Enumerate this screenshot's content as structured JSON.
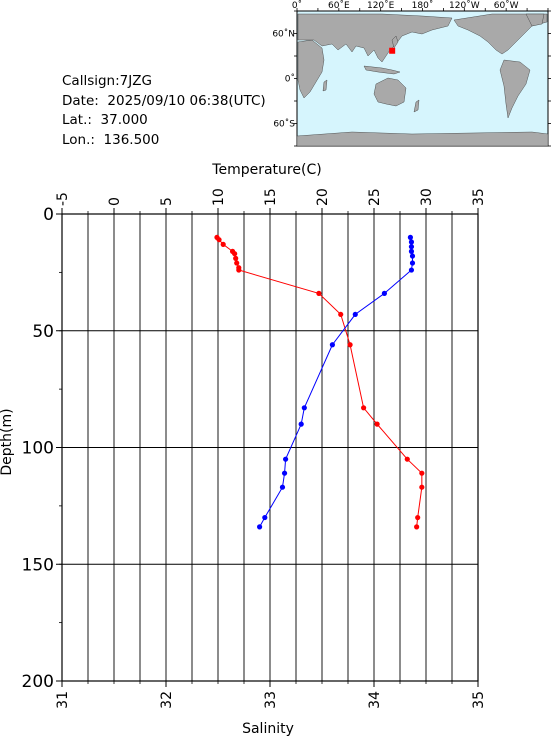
{
  "info": {
    "callsign": "Callsign:7JZG",
    "date": "Date:  2025/09/10 06:38(UTC)",
    "lat": "Lat.:  37.000",
    "lon": "Lon.:  136.500"
  },
  "map": {
    "top_labels": [
      "0˚",
      "60˚E",
      "120˚E",
      "180˚",
      "120˚W",
      "60˚W"
    ],
    "left_labels": [
      "60˚N",
      "0˚",
      "60˚S"
    ],
    "station": {
      "lat": 37.0,
      "lon": 136.5
    },
    "ocean_color": "#d6f5fd",
    "land_color": "#a9a9a9",
    "station_color": "#ff0000"
  },
  "chart_data": {
    "type": "line",
    "temperature_axis": {
      "label": "Temperature(C)",
      "range": [
        -5,
        35
      ],
      "ticks": [
        "-5",
        "0",
        "5",
        "10",
        "15",
        "20",
        "25",
        "30",
        "35"
      ]
    },
    "salinity_axis": {
      "label": "Salinity",
      "range": [
        31,
        35
      ],
      "ticks": [
        "31",
        "32",
        "33",
        "34",
        "35"
      ]
    },
    "depth_axis": {
      "label": "Depth(m)",
      "range": [
        0,
        200
      ],
      "ticks": [
        "0",
        "50",
        "100",
        "150",
        "200"
      ]
    },
    "grid": true,
    "series": [
      {
        "variable": "temperature",
        "color": "#ff0000",
        "points": [
          {
            "x": 9.9,
            "depth": 10
          },
          {
            "x": 10.1,
            "depth": 11
          },
          {
            "x": 10.5,
            "depth": 13
          },
          {
            "x": 11.4,
            "depth": 16
          },
          {
            "x": 11.6,
            "depth": 17
          },
          {
            "x": 11.7,
            "depth": 19
          },
          {
            "x": 11.8,
            "depth": 21
          },
          {
            "x": 12.0,
            "depth": 23
          },
          {
            "x": 12.0,
            "depth": 24
          },
          {
            "x": 19.7,
            "depth": 34
          },
          {
            "x": 21.8,
            "depth": 43
          },
          {
            "x": 22.7,
            "depth": 56
          },
          {
            "x": 24.0,
            "depth": 83
          },
          {
            "x": 25.3,
            "depth": 90
          },
          {
            "x": 28.2,
            "depth": 105
          },
          {
            "x": 29.6,
            "depth": 111
          },
          {
            "x": 29.6,
            "depth": 117
          },
          {
            "x": 29.2,
            "depth": 130
          },
          {
            "x": 29.1,
            "depth": 134
          }
        ]
      },
      {
        "variable": "salinity",
        "color": "#0000ff",
        "points": [
          {
            "x": 34.35,
            "depth": 10
          },
          {
            "x": 34.36,
            "depth": 12
          },
          {
            "x": 34.36,
            "depth": 14
          },
          {
            "x": 34.36,
            "depth": 16
          },
          {
            "x": 34.37,
            "depth": 18
          },
          {
            "x": 34.37,
            "depth": 21
          },
          {
            "x": 34.36,
            "depth": 24
          },
          {
            "x": 34.1,
            "depth": 34
          },
          {
            "x": 33.82,
            "depth": 43
          },
          {
            "x": 33.6,
            "depth": 56
          },
          {
            "x": 33.33,
            "depth": 83
          },
          {
            "x": 33.3,
            "depth": 90
          },
          {
            "x": 33.15,
            "depth": 105
          },
          {
            "x": 33.14,
            "depth": 111
          },
          {
            "x": 33.12,
            "depth": 117
          },
          {
            "x": 32.95,
            "depth": 130
          },
          {
            "x": 32.9,
            "depth": 134
          }
        ]
      }
    ]
  }
}
